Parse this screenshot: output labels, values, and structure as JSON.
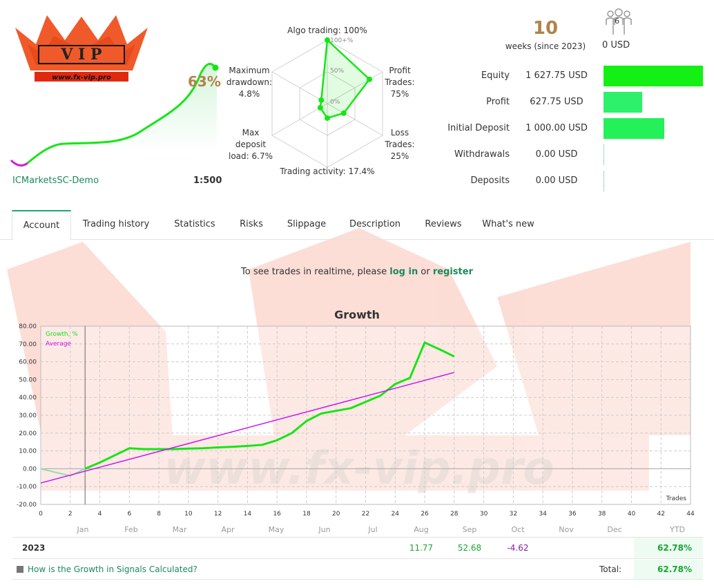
{
  "header": {
    "account_name": "ICMarketsSC-Demo",
    "leverage": "1:500",
    "growth_percent": "63%",
    "weeks_value": "10",
    "weeks_label": "weeks (since 2023)",
    "subscribers_count": "6",
    "subscribers_amount": "0 USD"
  },
  "radar": {
    "algo_trading": "Algo trading: 100%",
    "profit_trades_1": "Profit",
    "profit_trades_2": "Trades:",
    "profit_trades_3": "75%",
    "loss_trades_1": "Loss",
    "loss_trades_2": "Trades:",
    "loss_trades_3": "25%",
    "trading_activity": "Trading activity: 17.4%",
    "max_deposit_1": "Max",
    "max_deposit_2": "deposit",
    "max_deposit_3": "load: 6.7%",
    "max_drawdown_1": "Maximum",
    "max_drawdown_2": "drawdown:",
    "max_drawdown_3": "4.8%",
    "tick_100": "100+%",
    "tick_50": "50%",
    "tick_0": "0%",
    "values": [
      100,
      75,
      25,
      17.4,
      6.7,
      4.8
    ]
  },
  "finance": {
    "rows": [
      {
        "label": "Equity",
        "value": "1 627.75 USD",
        "amount": 1627.75,
        "color": "#14f014"
      },
      {
        "label": "Profit",
        "value": "627.75 USD",
        "amount": 627.75,
        "color": "#2ef06a"
      },
      {
        "label": "Initial Deposit",
        "value": "1 000.00 USD",
        "amount": 1000,
        "color": "#24f05a"
      },
      {
        "label": "Withdrawals",
        "value": "0.00 USD",
        "amount": 0,
        "color": "#9fe0b8"
      },
      {
        "label": "Deposits",
        "value": "0.00 USD",
        "amount": 0,
        "color": "#9fe0b8"
      }
    ]
  },
  "tabs": [
    "Account",
    "Trading history",
    "Statistics",
    "Risks",
    "Slippage",
    "Description",
    "Reviews",
    "What's new"
  ],
  "realtime": {
    "prefix": "To see trades in realtime, please ",
    "login": "log in",
    "middle": " or ",
    "register": "register"
  },
  "watermark_text": "www.fx-vip.pro",
  "chart_data": {
    "type": "line",
    "title": "Growth",
    "xlabel": "Trades",
    "ylabel": "",
    "xlim": [
      0,
      44
    ],
    "ylim": [
      -20,
      80
    ],
    "x_ticks": [
      0,
      2,
      4,
      6,
      8,
      10,
      12,
      14,
      16,
      18,
      20,
      22,
      24,
      26,
      28,
      30,
      32,
      34,
      36,
      38,
      40,
      42,
      44
    ],
    "y_ticks": [
      "80.00",
      "70.00",
      "60.00",
      "50.00",
      "40.00",
      "30.00",
      "20.00",
      "10.00",
      "0.00",
      "-10.00",
      "-20.00"
    ],
    "series": [
      {
        "name": "Growth, %",
        "color": "#14e614",
        "x": [
          3,
          4,
          5,
          6,
          7,
          8,
          9,
          10,
          11,
          12,
          13,
          14,
          15,
          16,
          17,
          18,
          19,
          20,
          21,
          22,
          23,
          24,
          25,
          26,
          27,
          28
        ],
        "y": [
          0,
          3.5,
          7.5,
          11.5,
          11,
          11,
          11,
          11.3,
          11.5,
          12,
          12.3,
          12.8,
          13.4,
          16,
          20,
          26.8,
          31,
          32.5,
          34,
          37.5,
          41,
          47.5,
          51,
          70.8,
          67,
          63
        ]
      },
      {
        "name": "Average",
        "color": "#c815f0",
        "x": [
          0,
          28
        ],
        "y": [
          -8,
          54
        ]
      }
    ],
    "pre_series": {
      "color": "#8fe0a8",
      "x": [
        0,
        2,
        3
      ],
      "y": [
        0,
        -4,
        0
      ]
    }
  },
  "table": {
    "months": [
      "Jan",
      "Feb",
      "Mar",
      "Apr",
      "May",
      "Jun",
      "Jul",
      "Aug",
      "Sep",
      "Oct",
      "Nov",
      "Dec"
    ],
    "ytd_label": "YTD",
    "year": "2023",
    "values": [
      "",
      "",
      "",
      "",
      "",
      "",
      "",
      "11.77",
      "52.68",
      "-4.62",
      "",
      ""
    ],
    "ytd": "62.78%",
    "faq": "How is the Growth in Signals Calculated?",
    "total_label": "Total:",
    "total": "62.78%"
  }
}
